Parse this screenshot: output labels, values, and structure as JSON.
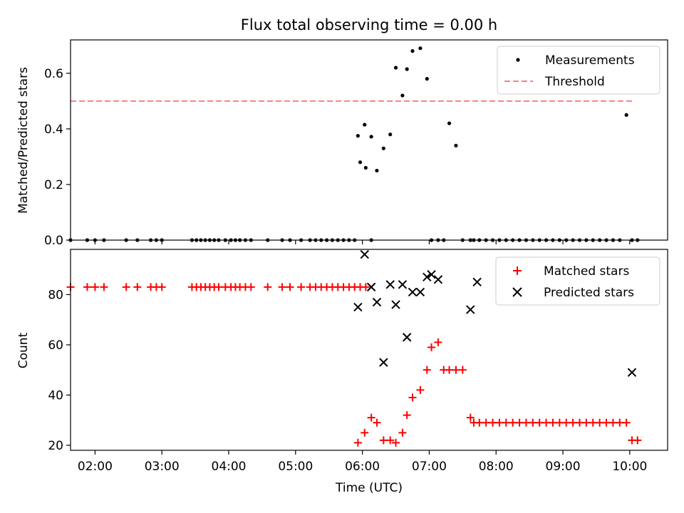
{
  "chart_data": [
    {
      "type": "scatter",
      "title": "Flux total observing time = 0.00 h",
      "ylabel": "Matched/Predicted stars",
      "xlabel": "",
      "xlim": [
        "01:38",
        "10:34"
      ],
      "ylim": [
        0,
        0.72
      ],
      "yticks": [
        "0.0",
        "0.2",
        "0.4",
        "0.6"
      ],
      "legend": {
        "position": "top-right"
      },
      "series": [
        {
          "name": "Measurements",
          "marker": "dot",
          "color": "#000000",
          "x": [
            "01:38",
            "01:53",
            "02:00",
            "02:08",
            "02:28",
            "02:38",
            "02:50",
            "02:55",
            "03:00",
            "03:27",
            "03:31",
            "03:35",
            "03:39",
            "03:43",
            "03:47",
            "03:51",
            "03:57",
            "04:02",
            "04:06",
            "04:10",
            "04:15",
            "04:20",
            "04:35",
            "04:48",
            "04:55",
            "05:05",
            "05:13",
            "05:18",
            "05:23",
            "05:28",
            "05:33",
            "05:38",
            "05:43",
            "05:48",
            "05:53",
            "05:58",
            "06:03",
            "06:08",
            "05:56",
            "06:02",
            "06:08",
            "06:13",
            "06:19",
            "06:25",
            "06:30",
            "06:36",
            "06:40",
            "06:45",
            "06:52",
            "06:58",
            "07:02",
            "07:08",
            "07:13",
            "07:18",
            "07:24",
            "07:30",
            "07:37",
            "07:40",
            "07:45",
            "07:51",
            "07:57",
            "08:03",
            "08:09",
            "08:15",
            "08:21",
            "08:27",
            "08:33",
            "08:39",
            "08:45",
            "08:51",
            "08:57",
            "09:03",
            "09:09",
            "09:15",
            "09:21",
            "09:27",
            "09:33",
            "09:39",
            "09:45",
            "09:51",
            "09:57",
            "10:02",
            "10:07"
          ],
          "y": [
            0,
            0,
            0,
            0,
            0,
            0,
            0,
            0,
            0,
            0,
            0,
            0,
            0,
            0,
            0,
            0,
            0,
            0,
            0,
            0,
            0,
            0,
            0,
            0,
            0,
            0,
            0,
            0,
            0,
            0,
            0,
            0,
            0,
            0,
            0,
            0.28,
            0.26,
            0.372,
            0.375,
            0.415,
            0,
            0.25,
            0.33,
            0.38,
            0.62,
            0.52,
            0.615,
            0.68,
            0.69,
            0.58,
            0,
            0,
            0,
            0.42,
            0.34,
            0,
            0,
            0,
            0,
            0,
            0,
            0,
            0,
            0,
            0,
            0,
            0,
            0,
            0,
            0,
            0,
            0,
            0,
            0,
            0,
            0,
            0,
            0,
            0,
            0,
            0.45,
            0,
            0
          ]
        },
        {
          "name": "Threshold",
          "marker": "dashed-line",
          "color": "#ff7f7f",
          "x": [
            "01:38",
            "10:02"
          ],
          "y": [
            0.5,
            0.5
          ]
        }
      ]
    },
    {
      "type": "scatter",
      "title": "",
      "ylabel": "Count",
      "xlabel": "Time (UTC)",
      "xlim": [
        "01:38",
        "10:34"
      ],
      "ylim": [
        18,
        98
      ],
      "yticks": [
        "20",
        "40",
        "60",
        "80"
      ],
      "xticks": [
        "02:00",
        "03:00",
        "04:00",
        "05:00",
        "06:00",
        "07:00",
        "08:00",
        "09:00",
        "10:00"
      ],
      "legend": {
        "position": "top-right"
      },
      "series": [
        {
          "name": "Matched stars",
          "marker": "plus",
          "color": "#ff0000",
          "x": [
            "01:38",
            "01:53",
            "02:00",
            "02:08",
            "02:28",
            "02:38",
            "02:50",
            "02:55",
            "03:00",
            "03:27",
            "03:31",
            "03:35",
            "03:39",
            "03:43",
            "03:47",
            "03:51",
            "03:57",
            "04:02",
            "04:06",
            "04:10",
            "04:15",
            "04:20",
            "04:35",
            "04:48",
            "04:55",
            "05:05",
            "05:13",
            "05:18",
            "05:23",
            "05:28",
            "05:33",
            "05:38",
            "05:43",
            "05:48",
            "05:53",
            "05:58",
            "06:03",
            "05:56",
            "06:02",
            "06:08",
            "06:13",
            "06:19",
            "06:25",
            "06:30",
            "06:36",
            "06:40",
            "06:45",
            "06:52",
            "06:58",
            "07:02",
            "07:08",
            "07:13",
            "07:18",
            "07:24",
            "07:30",
            "07:37",
            "07:40",
            "07:45",
            "07:51",
            "07:57",
            "08:03",
            "08:09",
            "08:15",
            "08:21",
            "08:27",
            "08:33",
            "08:39",
            "08:45",
            "08:51",
            "08:57",
            "09:03",
            "09:09",
            "09:15",
            "09:21",
            "09:27",
            "09:33",
            "09:39",
            "09:45",
            "09:51",
            "09:57",
            "10:02",
            "10:07"
          ],
          "y": [
            83,
            83,
            83,
            83,
            83,
            83,
            83,
            83,
            83,
            83,
            83,
            83,
            83,
            83,
            83,
            83,
            83,
            83,
            83,
            83,
            83,
            83,
            83,
            83,
            83,
            83,
            83,
            83,
            83,
            83,
            83,
            83,
            83,
            83,
            83,
            83,
            83,
            21,
            25,
            31,
            29,
            22,
            22,
            21,
            25,
            32,
            39,
            42,
            50,
            59,
            61,
            50,
            50,
            50,
            50,
            31,
            29,
            29,
            29,
            29,
            29,
            29,
            29,
            29,
            29,
            29,
            29,
            29,
            29,
            29,
            29,
            29,
            29,
            29,
            29,
            29,
            29,
            29,
            29,
            29,
            22,
            22
          ]
        },
        {
          "name": "Predicted stars",
          "marker": "x",
          "color": "#000000",
          "x": [
            "05:56",
            "06:02",
            "06:08",
            "06:13",
            "06:19",
            "06:25",
            "06:30",
            "06:36",
            "06:40",
            "06:45",
            "06:52",
            "06:58",
            "07:02",
            "07:08",
            "07:37",
            "07:43",
            "10:02"
          ],
          "y": [
            75,
            96,
            83,
            77,
            53,
            84,
            76,
            84,
            63,
            81,
            81,
            87,
            88,
            86,
            74,
            85,
            49
          ]
        }
      ]
    }
  ]
}
